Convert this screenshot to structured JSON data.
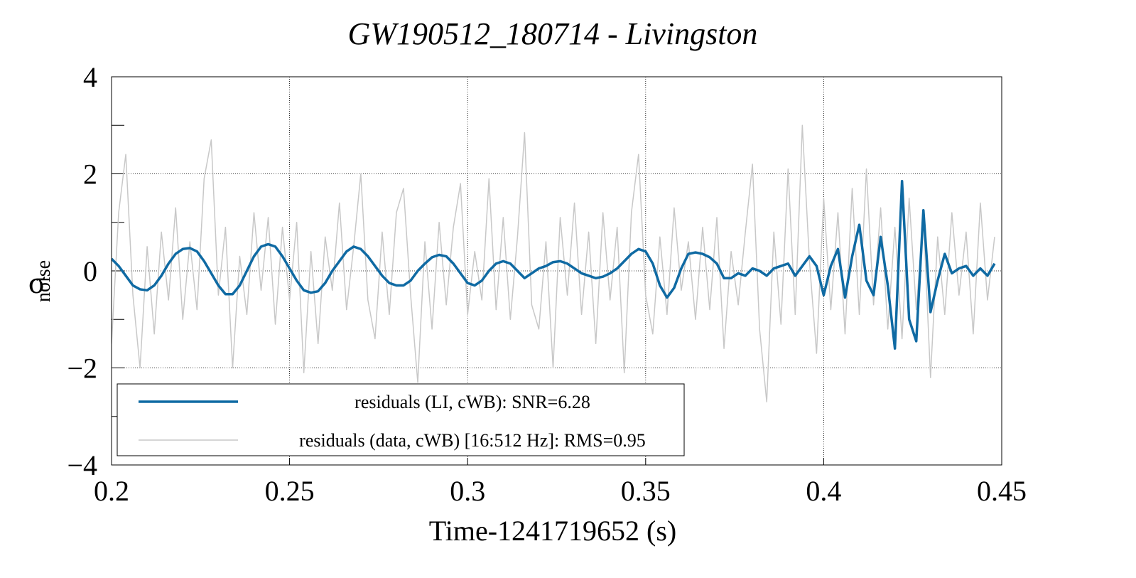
{
  "chart_data": {
    "type": "line",
    "title": "GW190512_180714 - Livingston",
    "x_label": "Time-1241719652 (s)",
    "y_label": "σ",
    "y_label_sub": "noise",
    "x": [
      0.2,
      0.202,
      0.204,
      0.206,
      0.208,
      0.21,
      0.212,
      0.214,
      0.216,
      0.218,
      0.22,
      0.222,
      0.224,
      0.226,
      0.228,
      0.23,
      0.232,
      0.234,
      0.236,
      0.238,
      0.24,
      0.242,
      0.244,
      0.246,
      0.248,
      0.25,
      0.252,
      0.254,
      0.256,
      0.258,
      0.26,
      0.262,
      0.264,
      0.266,
      0.268,
      0.27,
      0.272,
      0.274,
      0.276,
      0.278,
      0.28,
      0.282,
      0.284,
      0.286,
      0.288,
      0.29,
      0.292,
      0.294,
      0.296,
      0.298,
      0.3,
      0.302,
      0.304,
      0.306,
      0.308,
      0.31,
      0.312,
      0.314,
      0.316,
      0.318,
      0.32,
      0.322,
      0.324,
      0.326,
      0.328,
      0.33,
      0.332,
      0.334,
      0.336,
      0.338,
      0.34,
      0.342,
      0.344,
      0.346,
      0.348,
      0.35,
      0.352,
      0.354,
      0.356,
      0.358,
      0.36,
      0.362,
      0.364,
      0.366,
      0.368,
      0.37,
      0.372,
      0.374,
      0.376,
      0.378,
      0.38,
      0.382,
      0.384,
      0.386,
      0.388,
      0.39,
      0.392,
      0.394,
      0.396,
      0.398,
      0.4,
      0.402,
      0.404,
      0.406,
      0.408,
      0.41,
      0.412,
      0.414,
      0.416,
      0.418,
      0.42,
      0.422,
      0.424,
      0.426,
      0.428,
      0.43,
      0.432,
      0.434,
      0.436,
      0.438,
      0.44,
      0.442,
      0.444,
      0.446,
      0.448
    ],
    "series": [
      {
        "name": "residuals (data, cWB) [16:512 Hz]: RMS=0.95",
        "color": "#c8c8c8",
        "width": 1.5,
        "values": [
          -1.5,
          1.2,
          2.4,
          -0.5,
          -2.0,
          0.5,
          -1.3,
          0.8,
          -0.6,
          1.3,
          -1.0,
          0.6,
          -0.8,
          1.9,
          2.7,
          -0.5,
          0.9,
          -2.0,
          0.3,
          -0.9,
          1.2,
          -0.4,
          1.1,
          -1.1,
          0.9,
          -0.6,
          1.0,
          -2.1,
          0.4,
          -1.5,
          0.7,
          -0.4,
          1.4,
          -0.8,
          0.5,
          2.0,
          -0.6,
          -1.4,
          0.8,
          -0.9,
          1.2,
          1.7,
          -0.5,
          -2.3,
          0.6,
          -1.2,
          1.0,
          -0.7,
          0.9,
          1.8,
          -0.9,
          0.4,
          -0.6,
          1.9,
          -0.8,
          1.1,
          -1.0,
          0.7,
          2.85,
          -0.7,
          -1.2,
          0.6,
          -2.0,
          1.1,
          -0.5,
          1.4,
          -0.9,
          0.8,
          -1.5,
          1.2,
          -0.6,
          0.9,
          -2.1,
          1.2,
          2.4,
          -0.5,
          -1.3,
          0.7,
          -0.9,
          1.3,
          -0.4,
          0.6,
          -1.0,
          0.9,
          -0.8,
          1.1,
          -1.6,
          0.4,
          -0.7,
          0.8,
          2.2,
          -1.2,
          -2.7,
          0.8,
          -1.1,
          2.1,
          -0.9,
          3.0,
          0.2,
          -1.7,
          1.5,
          -0.8,
          1.2,
          -1.3,
          1.7,
          -0.9,
          2.1,
          -0.7,
          1.3,
          -1.2,
          0.9,
          -1.4,
          1.5,
          -0.8,
          1.1,
          -2.2,
          0.7,
          -0.9,
          1.2,
          -0.5,
          0.8,
          -1.3,
          1.4,
          -0.6,
          0.7
        ]
      },
      {
        "name": "residuals (LI, cWB): SNR=6.28",
        "color": "#0f6aa3",
        "width": 3.5,
        "values": [
          0.25,
          0.1,
          -0.1,
          -0.3,
          -0.38,
          -0.4,
          -0.3,
          -0.1,
          0.15,
          0.35,
          0.45,
          0.47,
          0.4,
          0.2,
          -0.05,
          -0.3,
          -0.48,
          -0.48,
          -0.3,
          0,
          0.3,
          0.5,
          0.55,
          0.5,
          0.3,
          0.05,
          -0.2,
          -0.4,
          -0.45,
          -0.42,
          -0.25,
          0,
          0.2,
          0.4,
          0.5,
          0.45,
          0.3,
          0.1,
          -0.1,
          -0.25,
          -0.3,
          -0.3,
          -0.2,
          0,
          0.15,
          0.28,
          0.33,
          0.3,
          0.15,
          -0.05,
          -0.25,
          -0.3,
          -0.2,
          0,
          0.15,
          0.2,
          0.15,
          0,
          -0.15,
          -0.05,
          0.05,
          0.1,
          0.18,
          0.2,
          0.15,
          0.05,
          -0.05,
          -0.1,
          -0.15,
          -0.12,
          -0.05,
          0.05,
          0.2,
          0.35,
          0.45,
          0.4,
          0.15,
          -0.3,
          -0.55,
          -0.35,
          0.05,
          0.35,
          0.38,
          0.35,
          0.28,
          0.15,
          -0.15,
          -0.15,
          -0.05,
          -0.1,
          0.05,
          0,
          -0.1,
          0.05,
          0.1,
          0.15,
          -0.1,
          0.1,
          0.3,
          0.1,
          -0.5,
          0.1,
          0.45,
          -0.55,
          0.3,
          0.95,
          -0.2,
          -0.5,
          0.7,
          -0.3,
          -1.6,
          1.85,
          -1.0,
          -1.45,
          1.25,
          -0.85,
          -0.2,
          0.35,
          -0.05,
          0.05,
          0.1,
          -0.1,
          0.05,
          -0.1,
          0.15
        ]
      }
    ],
    "legend_order": [
      1,
      0
    ],
    "xlim": [
      0.2,
      0.45
    ],
    "xticks": [
      0.2,
      0.25,
      0.3,
      0.35,
      0.4,
      0.45
    ],
    "ylim": [
      -4,
      4
    ],
    "yticks": [
      {
        "value": -4,
        "label": "−4"
      },
      {
        "value": -2,
        "label": "−2"
      },
      0,
      2,
      4
    ],
    "yminorticks": [
      -3,
      -1,
      1,
      3
    ],
    "grid": true,
    "legend": "lower left"
  }
}
